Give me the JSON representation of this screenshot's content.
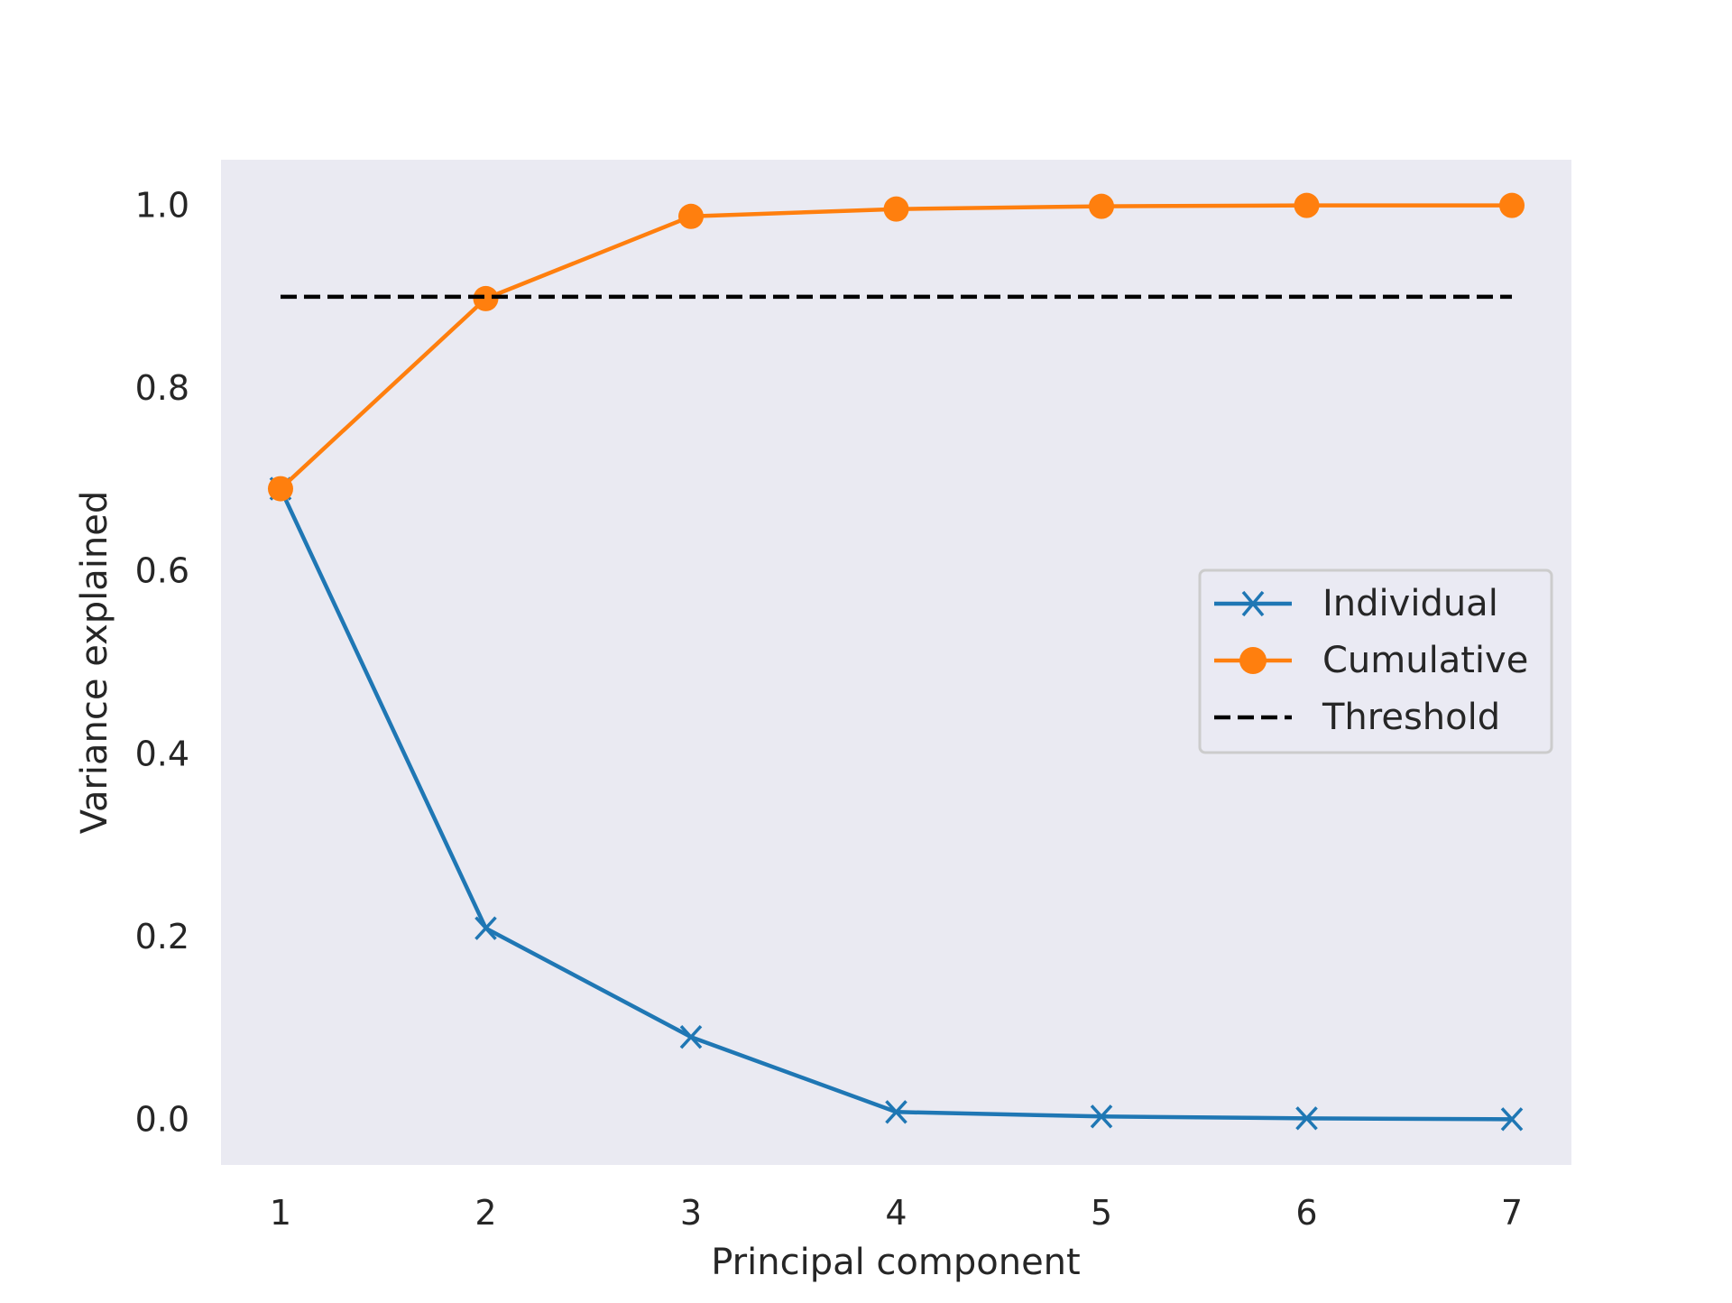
{
  "chart_data": {
    "type": "line",
    "x": [
      1,
      2,
      3,
      4,
      5,
      6,
      7
    ],
    "series": [
      {
        "name": "Individual",
        "values": [
          0.69,
          0.209,
          0.09,
          0.008,
          0.003,
          0.001,
          0.0
        ],
        "color": "#1f77b4",
        "marker": "x"
      },
      {
        "name": "Cumulative",
        "values": [
          0.69,
          0.898,
          0.988,
          0.996,
          0.999,
          1.0,
          1.0
        ],
        "color": "#ff7f0e",
        "marker": "circle"
      },
      {
        "name": "Threshold",
        "x_range": [
          1,
          7
        ],
        "value": 0.9,
        "color": "#000000",
        "style": "dashed"
      }
    ],
    "title": "",
    "xlabel": "Principal component",
    "ylabel": "Variance explained",
    "xlim": [
      0.71,
      7.29
    ],
    "ylim": [
      -0.05,
      1.05
    ],
    "xticks": [
      "1",
      "2",
      "3",
      "4",
      "5",
      "6",
      "7"
    ],
    "yticks": [
      "0.0",
      "0.2",
      "0.4",
      "0.6",
      "0.8",
      "1.0"
    ],
    "ytick_values": [
      0.0,
      0.2,
      0.4,
      0.6,
      0.8,
      1.0
    ],
    "grid": false,
    "legend_position": "center-right",
    "background_color": "#eaeaf2"
  }
}
